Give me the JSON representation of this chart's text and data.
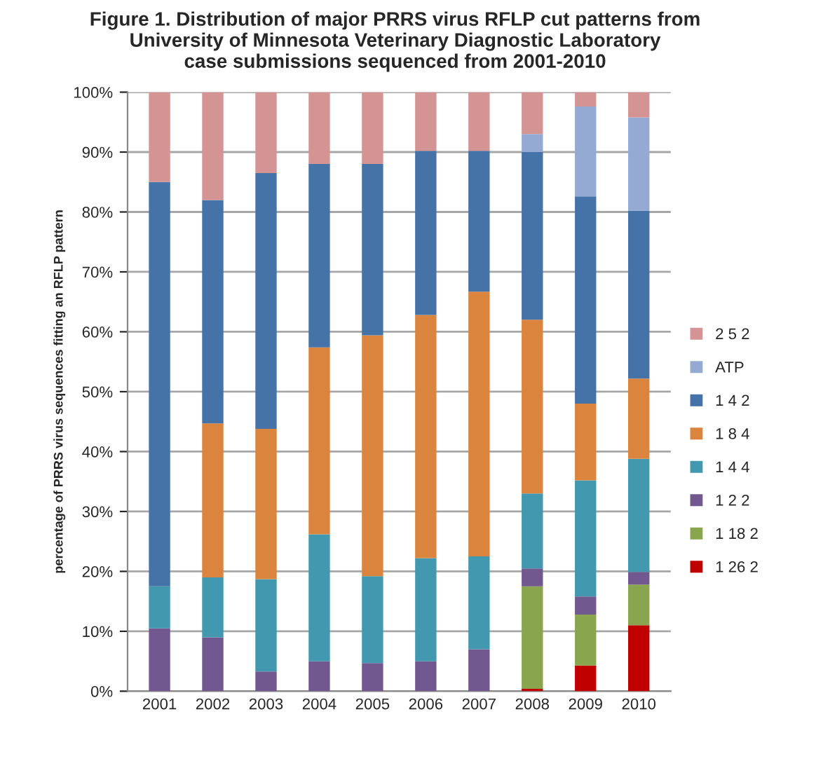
{
  "chart_data": {
    "type": "bar",
    "stacked": true,
    "title": "Figure 1. Distribution of major PRRS virus RFLP cut patterns from\nUniversity of Minnesota Veterinary Diagnostic Laboratory\ncase submissions sequenced from 2001-2010",
    "ylabel": "percentage of PRRS virus sequences fitting an RFLP pattern",
    "categories": [
      "2001",
      "2002",
      "2003",
      "2004",
      "2005",
      "2006",
      "2007",
      "2008",
      "2009",
      "2010"
    ],
    "series": [
      {
        "name": "1 26 2",
        "color": "#c00000",
        "values": [
          0,
          0,
          0,
          0,
          0,
          0,
          0,
          0.4,
          4.3,
          11
        ]
      },
      {
        "name": "1 18 2",
        "color": "#89a54e",
        "values": [
          0,
          0,
          0,
          0,
          0,
          0,
          0,
          17.1,
          8.5,
          6.8
        ]
      },
      {
        "name": "1 2 2",
        "color": "#71588f",
        "values": [
          10.5,
          9,
          3.3,
          5,
          4.7,
          5,
          7,
          3,
          3,
          2.1
        ]
      },
      {
        "name": "1 4 4",
        "color": "#4198af",
        "values": [
          7,
          10,
          15.4,
          21.2,
          14.5,
          17.2,
          15.5,
          12.5,
          19.4,
          18.9
        ]
      },
      {
        "name": "1 8 4",
        "color": "#db843d",
        "values": [
          0,
          25.7,
          25.1,
          31.2,
          40.2,
          40.6,
          44.2,
          29,
          12.8,
          13.4
        ]
      },
      {
        "name": "1 4 2",
        "color": "#4572a7",
        "values": [
          67.5,
          37.3,
          42.7,
          30.6,
          28.6,
          27.4,
          23.5,
          28,
          34.6,
          28
        ]
      },
      {
        "name": "ATP",
        "color": "#95aad3",
        "values": [
          0,
          0,
          0,
          0,
          0,
          0,
          0,
          3,
          15,
          15.6
        ]
      },
      {
        "name": "2 5 2",
        "color": "#d49494",
        "values": [
          15,
          18,
          13.5,
          12,
          12,
          9.8,
          9.8,
          7,
          2.4,
          4.2
        ]
      }
    ],
    "ylim": [
      0,
      100
    ],
    "yticks": [
      {
        "value": 0,
        "label": "0%"
      },
      {
        "value": 10,
        "label": "10%"
      },
      {
        "value": 20,
        "label": "20%"
      },
      {
        "value": 30,
        "label": "30%"
      },
      {
        "value": 40,
        "label": "40%"
      },
      {
        "value": 50,
        "label": "50%"
      },
      {
        "value": 60,
        "label": "60%"
      },
      {
        "value": 70,
        "label": "70%"
      },
      {
        "value": 80,
        "label": "80%"
      },
      {
        "value": 90,
        "label": "90%"
      },
      {
        "value": 100,
        "label": "100%"
      }
    ],
    "grid": "y",
    "legend": "right"
  }
}
